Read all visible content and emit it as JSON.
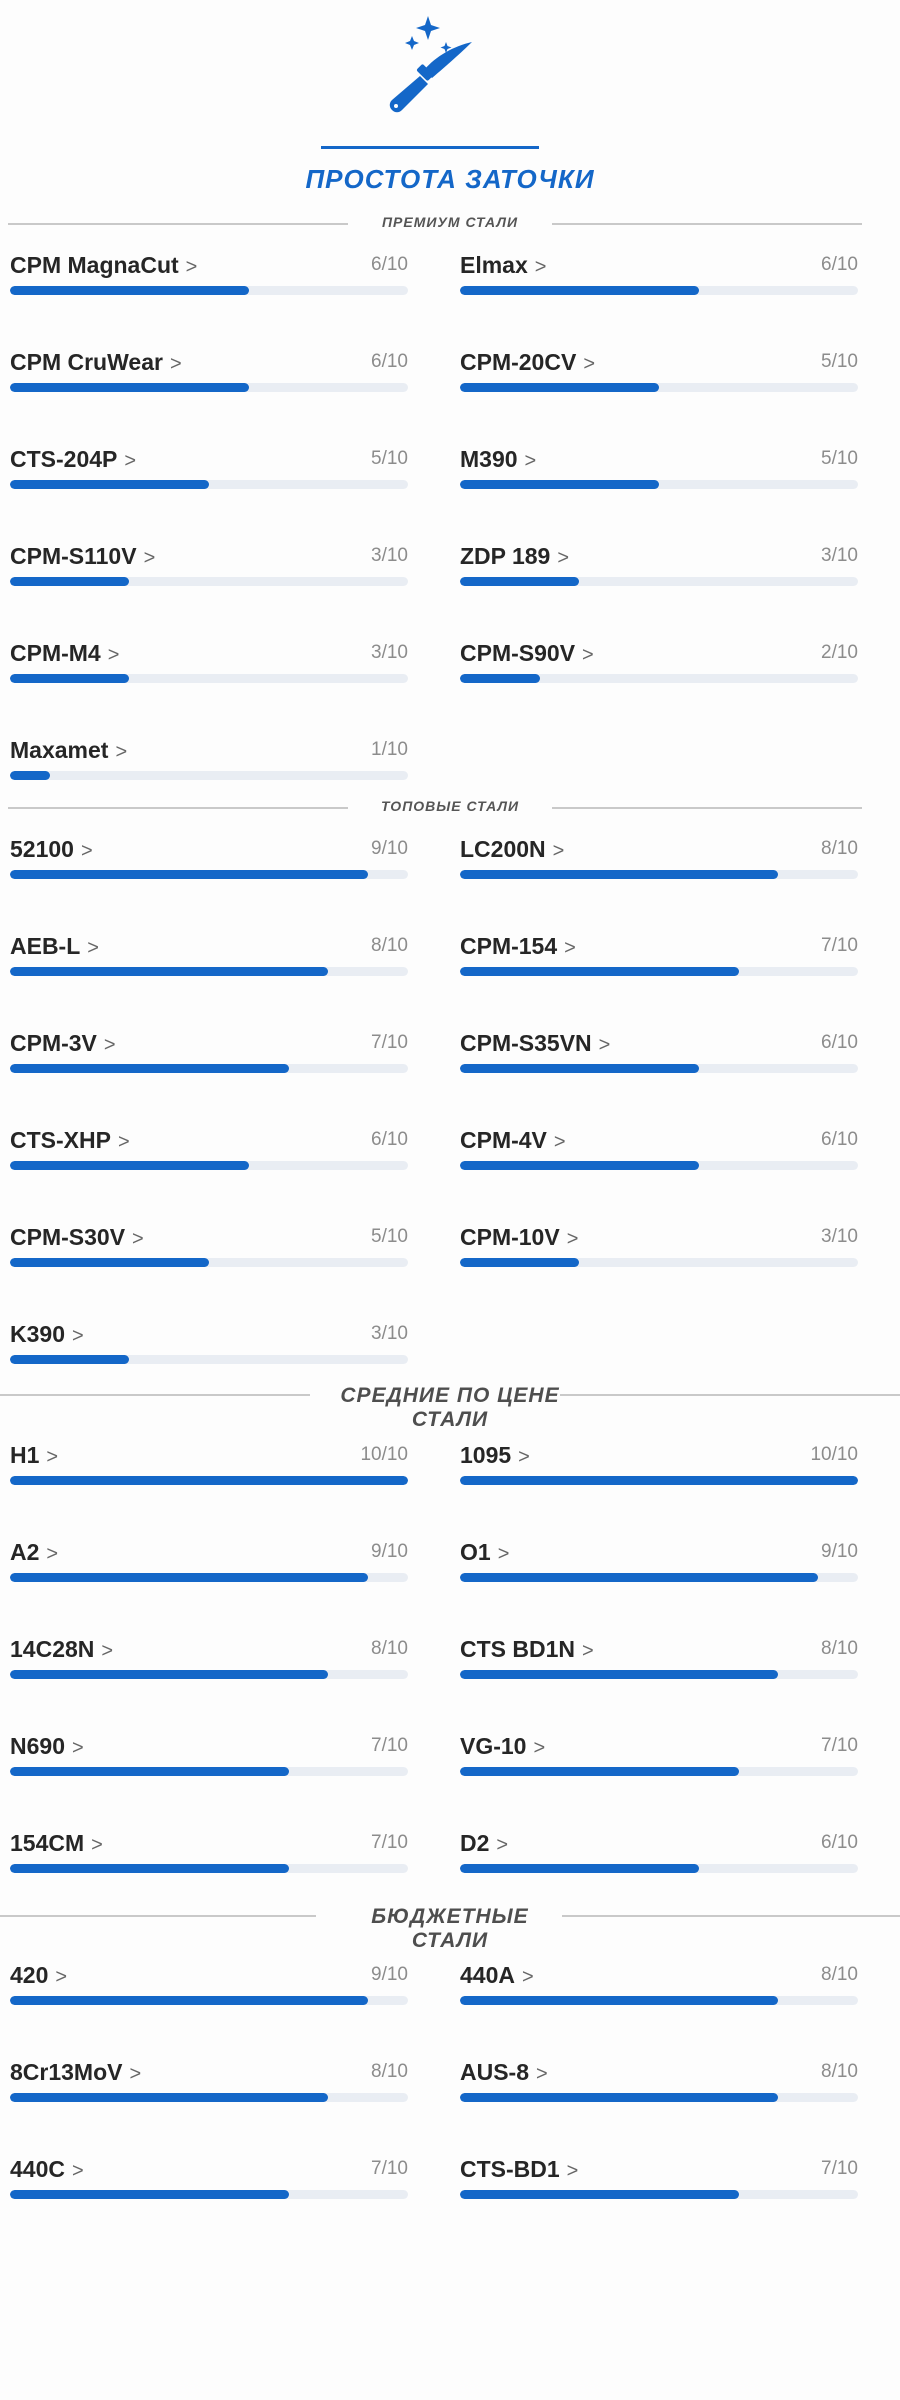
{
  "title": "ПРОСТОТА ЗАТОЧКИ",
  "icons": {
    "hero": "knife-sparkles-icon"
  },
  "colors": {
    "accent": "#1467c8",
    "track": "#e9edf3",
    "rule": "#c9c9c9"
  },
  "sections": [
    {
      "title": "ПРЕМИУМ СТАЛИ",
      "items": [
        {
          "name": "CPM MagnaCut",
          "score": "6/10",
          "value": 6
        },
        {
          "name": "Elmax",
          "score": "6/10",
          "value": 6
        },
        {
          "name": "CPM CruWear",
          "score": "6/10",
          "value": 6
        },
        {
          "name": "CPM-20CV",
          "score": "5/10",
          "value": 5
        },
        {
          "name": "CTS-204P",
          "score": "5/10",
          "value": 5
        },
        {
          "name": "M390",
          "score": "5/10",
          "value": 5
        },
        {
          "name": "CPM-S110V",
          "score": "3/10",
          "value": 3
        },
        {
          "name": "ZDP 189",
          "score": "3/10",
          "value": 3
        },
        {
          "name": "CPM-M4",
          "score": "3/10",
          "value": 3
        },
        {
          "name": "CPM-S90V",
          "score": "2/10",
          "value": 2
        },
        {
          "name": "Maxamet",
          "score": "1/10",
          "value": 1
        }
      ]
    },
    {
      "title": "ТОПОВЫЕ СТАЛИ",
      "items": [
        {
          "name": "52100",
          "score": "9/10",
          "value": 9
        },
        {
          "name": "LC200N",
          "score": "8/10",
          "value": 8
        },
        {
          "name": "AEB-L",
          "score": "8/10",
          "value": 8
        },
        {
          "name": "CPM-154",
          "score": "7/10",
          "value": 7
        },
        {
          "name": "CPM-3V",
          "score": "7/10",
          "value": 7
        },
        {
          "name": "CPM-S35VN",
          "score": "6/10",
          "value": 6
        },
        {
          "name": "CTS-XHP",
          "score": "6/10",
          "value": 6
        },
        {
          "name": "CPM-4V",
          "score": "6/10",
          "value": 6
        },
        {
          "name": "CPM-S30V",
          "score": "5/10",
          "value": 5
        },
        {
          "name": "CPM-10V",
          "score": "3/10",
          "value": 3
        },
        {
          "name": "K390",
          "score": "3/10",
          "value": 3
        }
      ]
    },
    {
      "title": "СРЕДНИЕ ПО ЦЕНЕ СТАЛИ",
      "title_lines": [
        "СРЕДНИЕ ПО ЦЕНЕ",
        "СТАЛИ"
      ],
      "items": [
        {
          "name": "H1",
          "score": "10/10",
          "value": 10
        },
        {
          "name": "1095",
          "score": "10/10",
          "value": 10
        },
        {
          "name": "A2",
          "score": "9/10",
          "value": 9
        },
        {
          "name": "O1",
          "score": "9/10",
          "value": 9
        },
        {
          "name": "14C28N",
          "score": "8/10",
          "value": 8
        },
        {
          "name": "CTS BD1N",
          "score": "8/10",
          "value": 8
        },
        {
          "name": "N690",
          "score": "7/10",
          "value": 7
        },
        {
          "name": "VG-10",
          "score": "7/10",
          "value": 7
        },
        {
          "name": "154CM",
          "score": "7/10",
          "value": 7
        },
        {
          "name": "D2",
          "score": "6/10",
          "value": 6
        }
      ]
    },
    {
      "title": "БЮДЖЕТНЫЕ СТАЛИ",
      "title_lines": [
        "БЮДЖЕТНЫЕ",
        "СТАЛИ"
      ],
      "items": [
        {
          "name": "420",
          "score": "9/10",
          "value": 9
        },
        {
          "name": "440A",
          "score": "8/10",
          "value": 8
        },
        {
          "name": "8Cr13MoV",
          "score": "8/10",
          "value": 8
        },
        {
          "name": "AUS-8",
          "score": "8/10",
          "value": 8
        },
        {
          "name": "440C",
          "score": "7/10",
          "value": 7
        },
        {
          "name": "CTS-BD1",
          "score": "7/10",
          "value": 7
        }
      ]
    }
  ]
}
